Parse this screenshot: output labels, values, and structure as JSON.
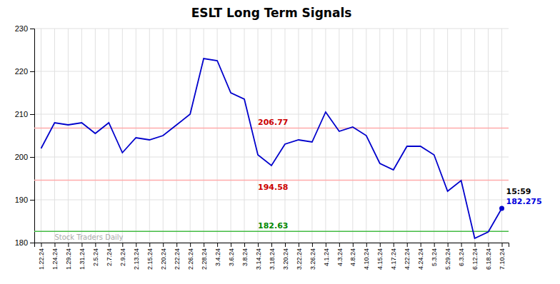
{
  "chart_data": {
    "type": "line",
    "title": "ESLT Long Term Signals",
    "categories": [
      "1.22.24",
      "1.24.24",
      "1.29.24",
      "1.31.24",
      "2.5.24",
      "2.7.24",
      "2.9.24",
      "2.13.24",
      "2.15.24",
      "2.20.24",
      "2.22.24",
      "2.26.24",
      "2.28.24",
      "3.4.24",
      "3.6.24",
      "3.8.24",
      "3.14.24",
      "3.18.24",
      "3.20.24",
      "3.22.24",
      "3.26.24",
      "4.1.24",
      "4.3.24",
      "4.8.24",
      "4.10.24",
      "4.15.24",
      "4.17.24",
      "4.22.24",
      "4.24.24",
      "5.3.24",
      "5.29.24",
      "6.3.24",
      "6.12.24",
      "6.18.24",
      "7.10.24"
    ],
    "values": [
      202.0,
      208.0,
      207.5,
      208.0,
      205.5,
      208.0,
      201.0,
      204.5,
      204.0,
      205.0,
      207.5,
      210.0,
      223.0,
      222.5,
      215.0,
      213.5,
      200.5,
      198.0,
      203.0,
      204.0,
      203.5,
      210.5,
      206.0,
      207.0,
      205.0,
      198.5,
      197.0,
      202.5,
      202.5,
      200.5,
      192.0,
      194.5,
      181.0,
      182.5,
      188.0
    ],
    "color": "#0000cc",
    "ylim": [
      180,
      230
    ],
    "yticks": [
      180,
      190,
      200,
      210,
      220,
      230
    ],
    "grid": true,
    "reference_lines": [
      {
        "value": 206.77,
        "label": "206.77",
        "color": "#ffaaaa",
        "label_color": "#cc0000"
      },
      {
        "value": 194.58,
        "label": "194.58",
        "color": "#ffaaaa",
        "label_color": "#cc0000"
      },
      {
        "value": 182.63,
        "label": "182.63",
        "color": "#44bb44",
        "label_color": "#008800"
      }
    ],
    "annotations": [
      {
        "text": "15:59",
        "color": "#000000"
      },
      {
        "text": "182.275",
        "color": "#0000dd"
      }
    ],
    "watermark": {
      "text": "Stock Traders Daily",
      "color": "#aaaaaa"
    }
  }
}
